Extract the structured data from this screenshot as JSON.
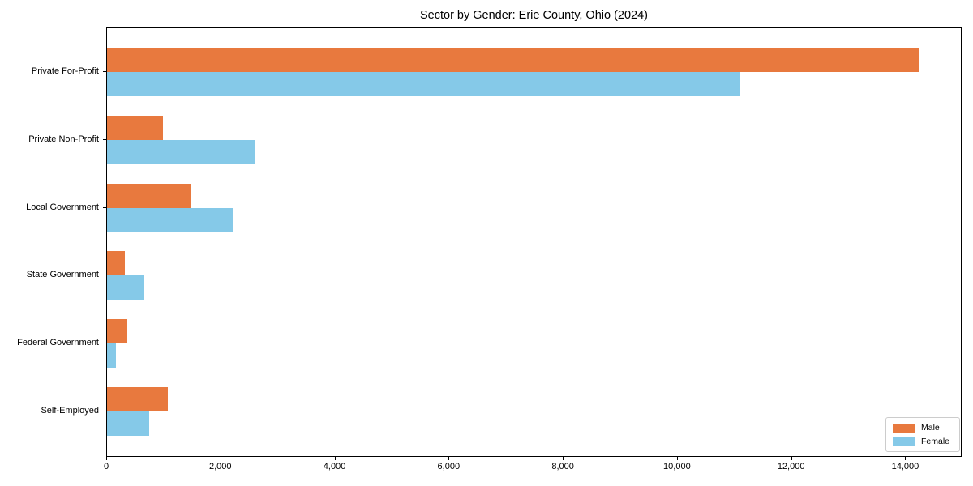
{
  "chart_data": {
    "type": "bar",
    "orientation": "horizontal",
    "title": "Sector by Gender: Erie County, Ohio (2024)",
    "categories": [
      "Private For-Profit",
      "Private Non-Profit",
      "Local Government",
      "State Government",
      "Federal Government",
      "Self-Employed"
    ],
    "series": [
      {
        "name": "Male",
        "color": "#E8793E",
        "values": [
          14240,
          980,
          1460,
          310,
          350,
          1060
        ]
      },
      {
        "name": "Female",
        "color": "#85C9E8",
        "values": [
          11090,
          2580,
          2200,
          650,
          160,
          740
        ]
      }
    ],
    "xlabel": "",
    "ylabel": "",
    "xlim": [
      0,
      14960
    ],
    "xticks": [
      0,
      2000,
      4000,
      6000,
      8000,
      10000,
      12000,
      14000
    ],
    "xtick_labels": [
      "0",
      "2,000",
      "4,000",
      "6,000",
      "8,000",
      "10,000",
      "12,000",
      "14,000"
    ],
    "grid": false,
    "legend_position": "lower right",
    "axis_color": "#000000",
    "background_color": "#ffffff"
  }
}
